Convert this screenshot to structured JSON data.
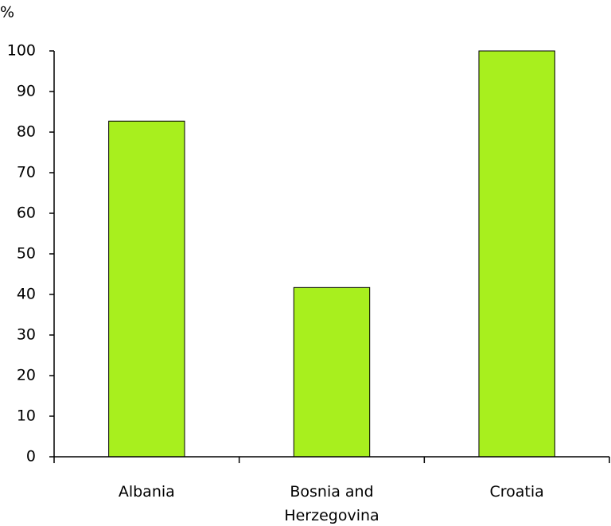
{
  "chart_data": {
    "type": "bar",
    "y_label": "%",
    "categories": [
      "Albania",
      "Bosnia and Herzegovina",
      "Croatia"
    ],
    "values": [
      82.7,
      41.7,
      100
    ],
    "color": "#a8ef1e",
    "ylim": [
      0,
      100
    ],
    "yticks": [
      0,
      10,
      20,
      30,
      40,
      50,
      60,
      70,
      80,
      90,
      100
    ],
    "grid": false
  }
}
